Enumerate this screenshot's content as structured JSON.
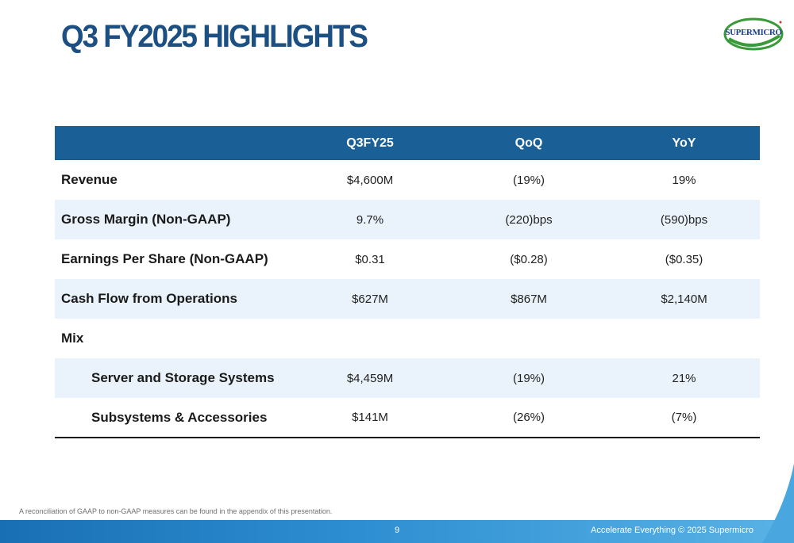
{
  "slide": {
    "title": "Q3 FY2025 HIGHLIGHTS",
    "logo_text": "SUPERMICRO",
    "footnote": "A reconciliation of GAAP to non-GAAP measures can be found in the appendix of this presentation.",
    "page_number": "9",
    "copyright": "Accelerate Everything © 2025 Supermicro"
  },
  "colors": {
    "title": "#1c4f82",
    "header_bg": "#1a6096",
    "alt_row_bg": "#eaf3fb",
    "footer_bar": "#2d8ed1",
    "logo_green": "#3a9a3a"
  },
  "table": {
    "headers": [
      "",
      "Q3FY25",
      "QoQ",
      "YoY"
    ],
    "rows": [
      {
        "label": "Revenue",
        "q3fy25": "$4,600M",
        "qoq": "(19%)",
        "yoy": "19%"
      },
      {
        "label": "Gross Margin (Non-GAAP)",
        "q3fy25": "9.7%",
        "qoq": "(220)bps",
        "yoy": "(590)bps"
      },
      {
        "label": "Earnings Per Share (Non-GAAP)",
        "q3fy25": "$0.31",
        "qoq": "($0.28)",
        "yoy": "($0.35)"
      },
      {
        "label": "Cash Flow from Operations",
        "q3fy25": "$627M",
        "qoq": "$867M",
        "yoy": "$2,140M"
      },
      {
        "label": "Mix",
        "q3fy25": "",
        "qoq": "",
        "yoy": ""
      },
      {
        "label": "Server and Storage Systems",
        "q3fy25": "$4,459M",
        "qoq": "(19%)",
        "yoy": "21%"
      },
      {
        "label": "Subsystems & Accessories",
        "q3fy25": "$141M",
        "qoq": "(26%)",
        "yoy": "(7%)"
      }
    ]
  }
}
